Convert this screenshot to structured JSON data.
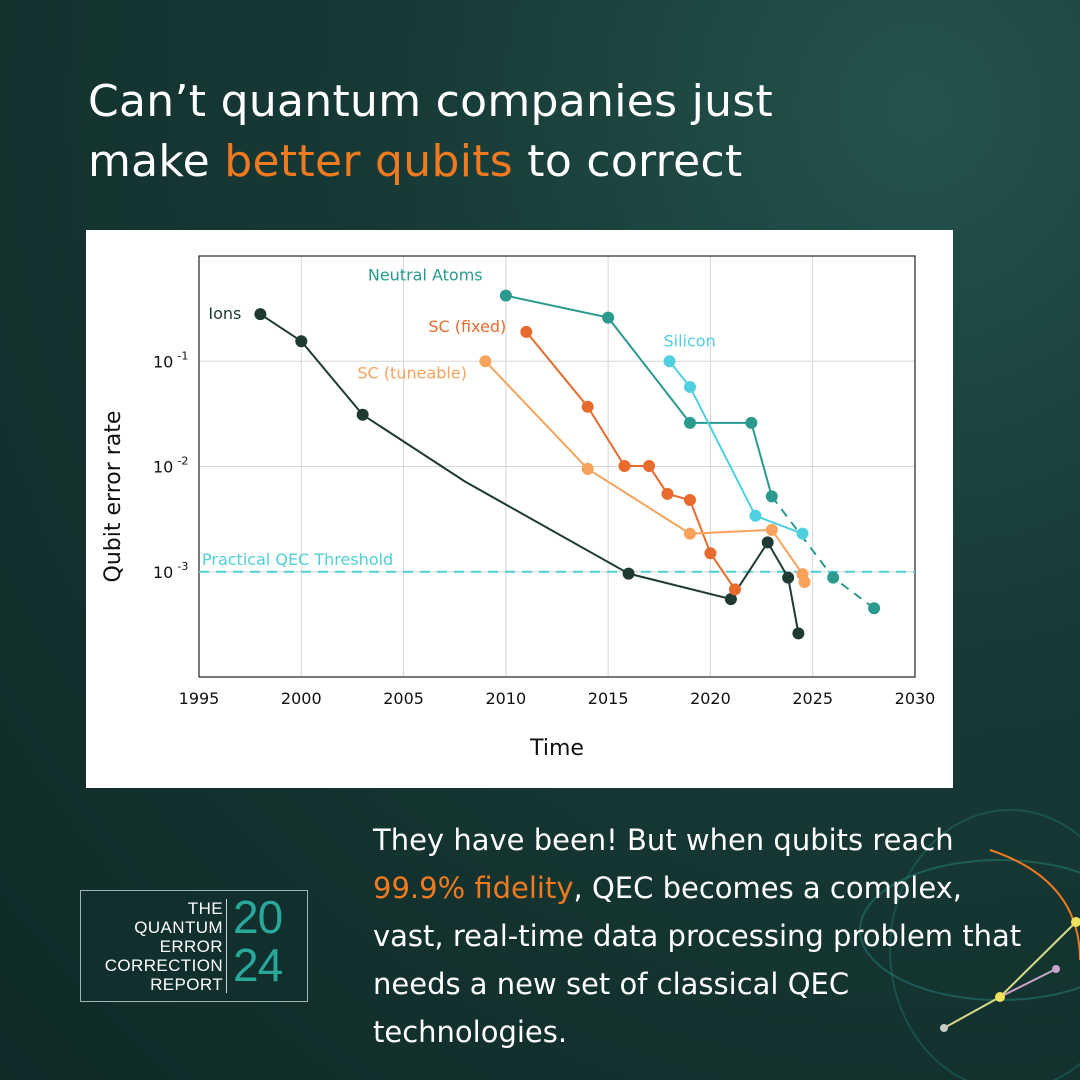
{
  "headline": {
    "line1": "Can’t quantum companies just",
    "line2_pre": "make ",
    "line2_highlight": "better qubits",
    "line2_post": " to correct"
  },
  "body": {
    "pre": "They have been! But when qubits reach ",
    "highlight": "99.9% fidelity",
    "post": ", QEC becomes a complex, vast, real-time data processing problem that needs a new set of classical QEC technologies."
  },
  "logo": {
    "lines": [
      "THE",
      "QUANTUM",
      "ERROR",
      "CORRECTION",
      "REPORT"
    ],
    "year_top": "20",
    "year_bottom": "24"
  },
  "colors": {
    "accent": "#ef7a1f",
    "teal": "#2aa79b",
    "background": "#173a36"
  },
  "chart_data": {
    "type": "line",
    "xlabel": "Time",
    "ylabel": "Qubit error rate",
    "xlim": [
      1995,
      2030
    ],
    "ylim": [
      0.0001,
      1
    ],
    "yscale": "log",
    "grid": true,
    "xticks": [
      "1995",
      "2000",
      "2005",
      "2010",
      "2015",
      "2020",
      "2025",
      "2030"
    ],
    "yticks": [
      {
        "value": 0.1,
        "base": "10",
        "exp": "-1"
      },
      {
        "value": 0.01,
        "base": "10",
        "exp": "-2"
      },
      {
        "value": 0.001,
        "base": "10",
        "exp": "-3"
      }
    ],
    "threshold": {
      "label": "Practical QEC Threshold",
      "value": 0.001,
      "color": "#4fcfd6"
    },
    "series": [
      {
        "name": "Ions",
        "color": "#1f3a33",
        "points": [
          [
            1998,
            0.28
          ],
          [
            2000,
            0.155
          ],
          [
            2003,
            0.031
          ],
          [
            2008,
            0.0072
          ],
          [
            2016,
            0.00096
          ],
          [
            2021,
            0.00055
          ],
          [
            2022.8,
            0.0019
          ],
          [
            2023.8,
            0.00088
          ],
          [
            2024.3,
            0.00026
          ]
        ],
        "markers": [
          0,
          1,
          2,
          4,
          5,
          6,
          7,
          8
        ],
        "dashed_from": null
      },
      {
        "name": "Neutral Atoms",
        "color": "#2a9a8f",
        "points": [
          [
            2010,
            0.42
          ],
          [
            2015,
            0.26
          ],
          [
            2019,
            0.026
          ],
          [
            2022,
            0.026
          ],
          [
            2023,
            0.0052
          ],
          [
            2026,
            0.00088
          ],
          [
            2028,
            0.00045
          ]
        ],
        "markers": [
          0,
          1,
          2,
          3,
          4,
          5,
          6
        ],
        "dashed_from": 4
      },
      {
        "name": "SC (fixed)",
        "color": "#e86a2c",
        "points": [
          [
            2011,
            0.19
          ],
          [
            2014,
            0.037
          ],
          [
            2015.8,
            0.0101
          ],
          [
            2017,
            0.0101
          ],
          [
            2017.9,
            0.0055
          ],
          [
            2019,
            0.0048
          ],
          [
            2020,
            0.0015
          ],
          [
            2021.2,
            0.00068
          ]
        ],
        "markers": [
          0,
          1,
          2,
          3,
          4,
          5,
          6,
          7
        ],
        "dashed_from": null
      },
      {
        "name": "SC (tuneable)",
        "color": "#f7a35c",
        "points": [
          [
            2009,
            0.1
          ],
          [
            2014,
            0.0095
          ],
          [
            2019,
            0.0023
          ],
          [
            2023,
            0.0025
          ],
          [
            2024.5,
            0.00095
          ],
          [
            2024.6,
            0.0008
          ]
        ],
        "markers": [
          0,
          1,
          2,
          3,
          4,
          5
        ],
        "dashed_from": null
      },
      {
        "name": "Silicon",
        "color": "#4fcfe0",
        "points": [
          [
            2018,
            0.1
          ],
          [
            2019,
            0.057
          ],
          [
            2022.2,
            0.0034
          ],
          [
            2024.5,
            0.0023
          ]
        ],
        "markers": [
          0,
          1,
          2,
          3
        ],
        "dashed_from": null
      }
    ]
  }
}
